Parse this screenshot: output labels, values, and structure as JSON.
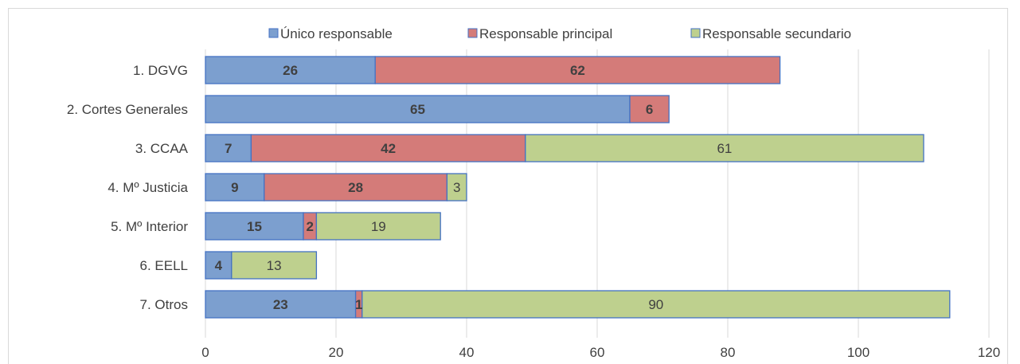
{
  "chart_data": {
    "type": "bar",
    "orientation": "horizontal",
    "stacked": true,
    "categories": [
      "1. DGVG",
      "2. Cortes Generales",
      "3. CCAA",
      "4. Mº Justicia",
      "5. Mº Interior",
      "6. EELL",
      "7. Otros"
    ],
    "series": [
      {
        "name": "Único responsable",
        "values": [
          26,
          65,
          7,
          9,
          15,
          4,
          23
        ],
        "color": "#7c9fcf",
        "stroke": "#4472c4",
        "label_bold": true
      },
      {
        "name": "Responsable principal",
        "values": [
          62,
          6,
          42,
          28,
          2,
          0,
          1
        ],
        "color": "#d47b79",
        "stroke": "#4472c4",
        "label_bold": true
      },
      {
        "name": "Responsable secundario",
        "values": [
          0,
          0,
          61,
          3,
          19,
          13,
          90
        ],
        "color": "#bed08e",
        "stroke": "#4472c4",
        "label_bold": false
      }
    ],
    "xlim": [
      0,
      120
    ],
    "xticks": [
      0,
      20,
      40,
      60,
      80,
      100,
      120
    ],
    "grid": true,
    "legend_position": "top",
    "title": "",
    "xlabel": "",
    "ylabel": ""
  }
}
